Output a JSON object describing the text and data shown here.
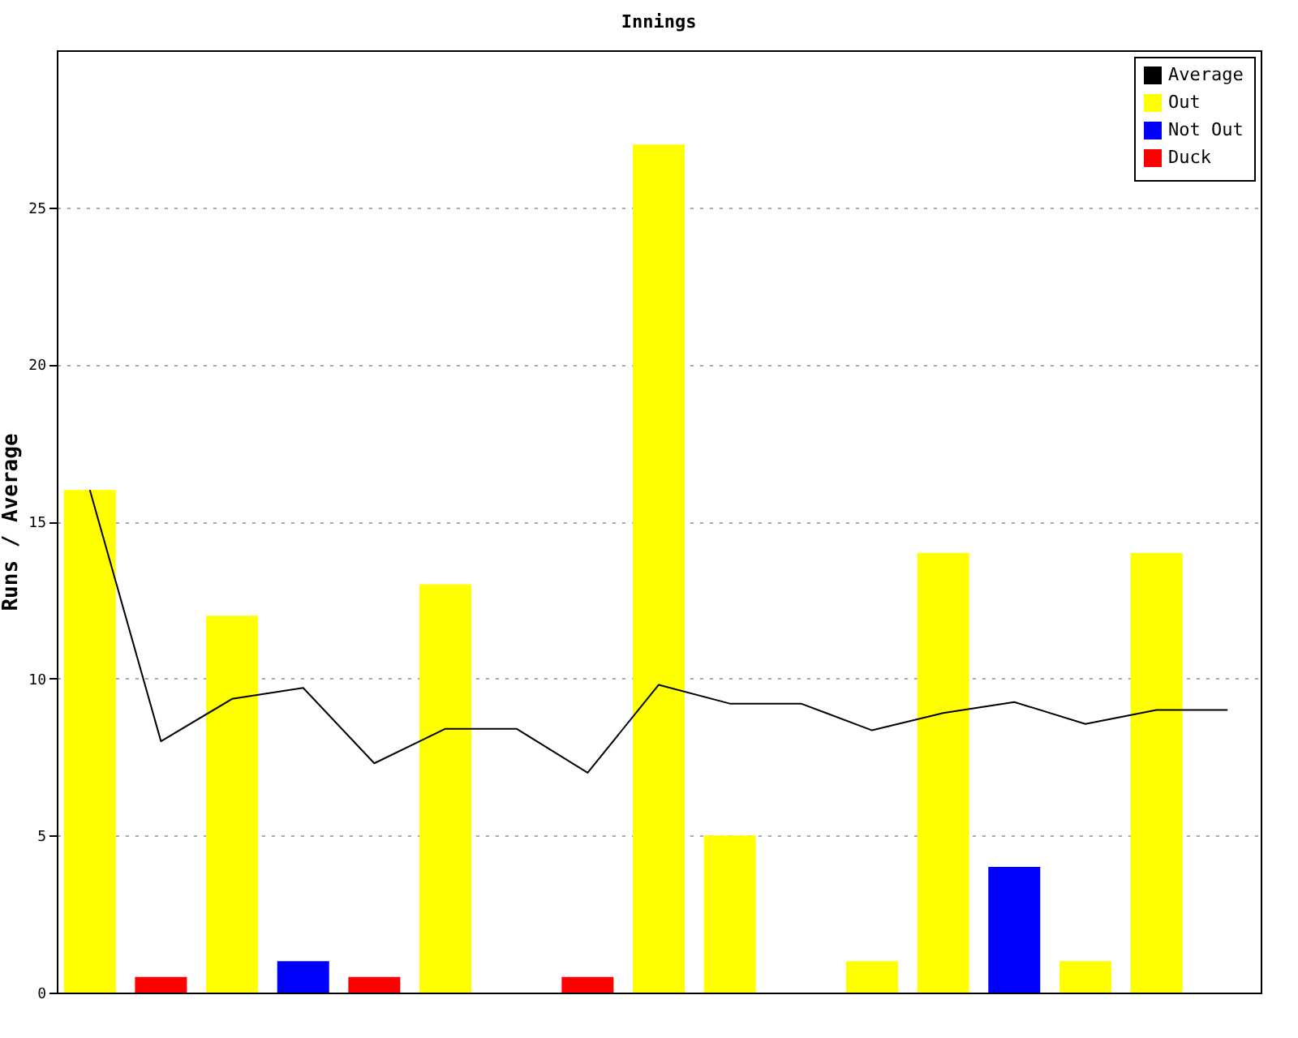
{
  "chart_data": {
    "type": "bar",
    "title": "Innings",
    "ylabel": "Runs / Average",
    "categories": [
      null,
      null,
      null,
      null,
      null,
      null,
      null,
      null,
      null,
      null,
      null,
      null,
      null,
      null,
      null,
      null,
      null
    ],
    "series": [
      {
        "name": "Average",
        "type": "line",
        "color": "#000000",
        "values": [
          16,
          8.0,
          9.35,
          9.7,
          7.3,
          8.4,
          8.4,
          7.0,
          9.8,
          9.2,
          9.2,
          8.35,
          8.9,
          9.25,
          8.55,
          9.0,
          9.0
        ]
      },
      {
        "name": "Out",
        "color": "#ffff00",
        "values": [
          16,
          null,
          12,
          null,
          null,
          13,
          null,
          null,
          27,
          5,
          null,
          1,
          14,
          null,
          1,
          14,
          null
        ]
      },
      {
        "name": "Not Out",
        "color": "#0000ff",
        "values": [
          null,
          null,
          null,
          1,
          null,
          null,
          null,
          null,
          null,
          null,
          null,
          null,
          null,
          4,
          null,
          null,
          null
        ]
      },
      {
        "name": "Duck",
        "color": "#ff0000",
        "values": [
          null,
          0.5,
          null,
          null,
          0.5,
          null,
          null,
          0.5,
          null,
          null,
          null,
          null,
          null,
          null,
          null,
          null,
          null
        ]
      }
    ],
    "ylim": [
      0,
      30
    ],
    "yticks": [
      0,
      5,
      10,
      15,
      20,
      25
    ],
    "grid": "y",
    "legend": "top right",
    "tick_labels": "y"
  }
}
